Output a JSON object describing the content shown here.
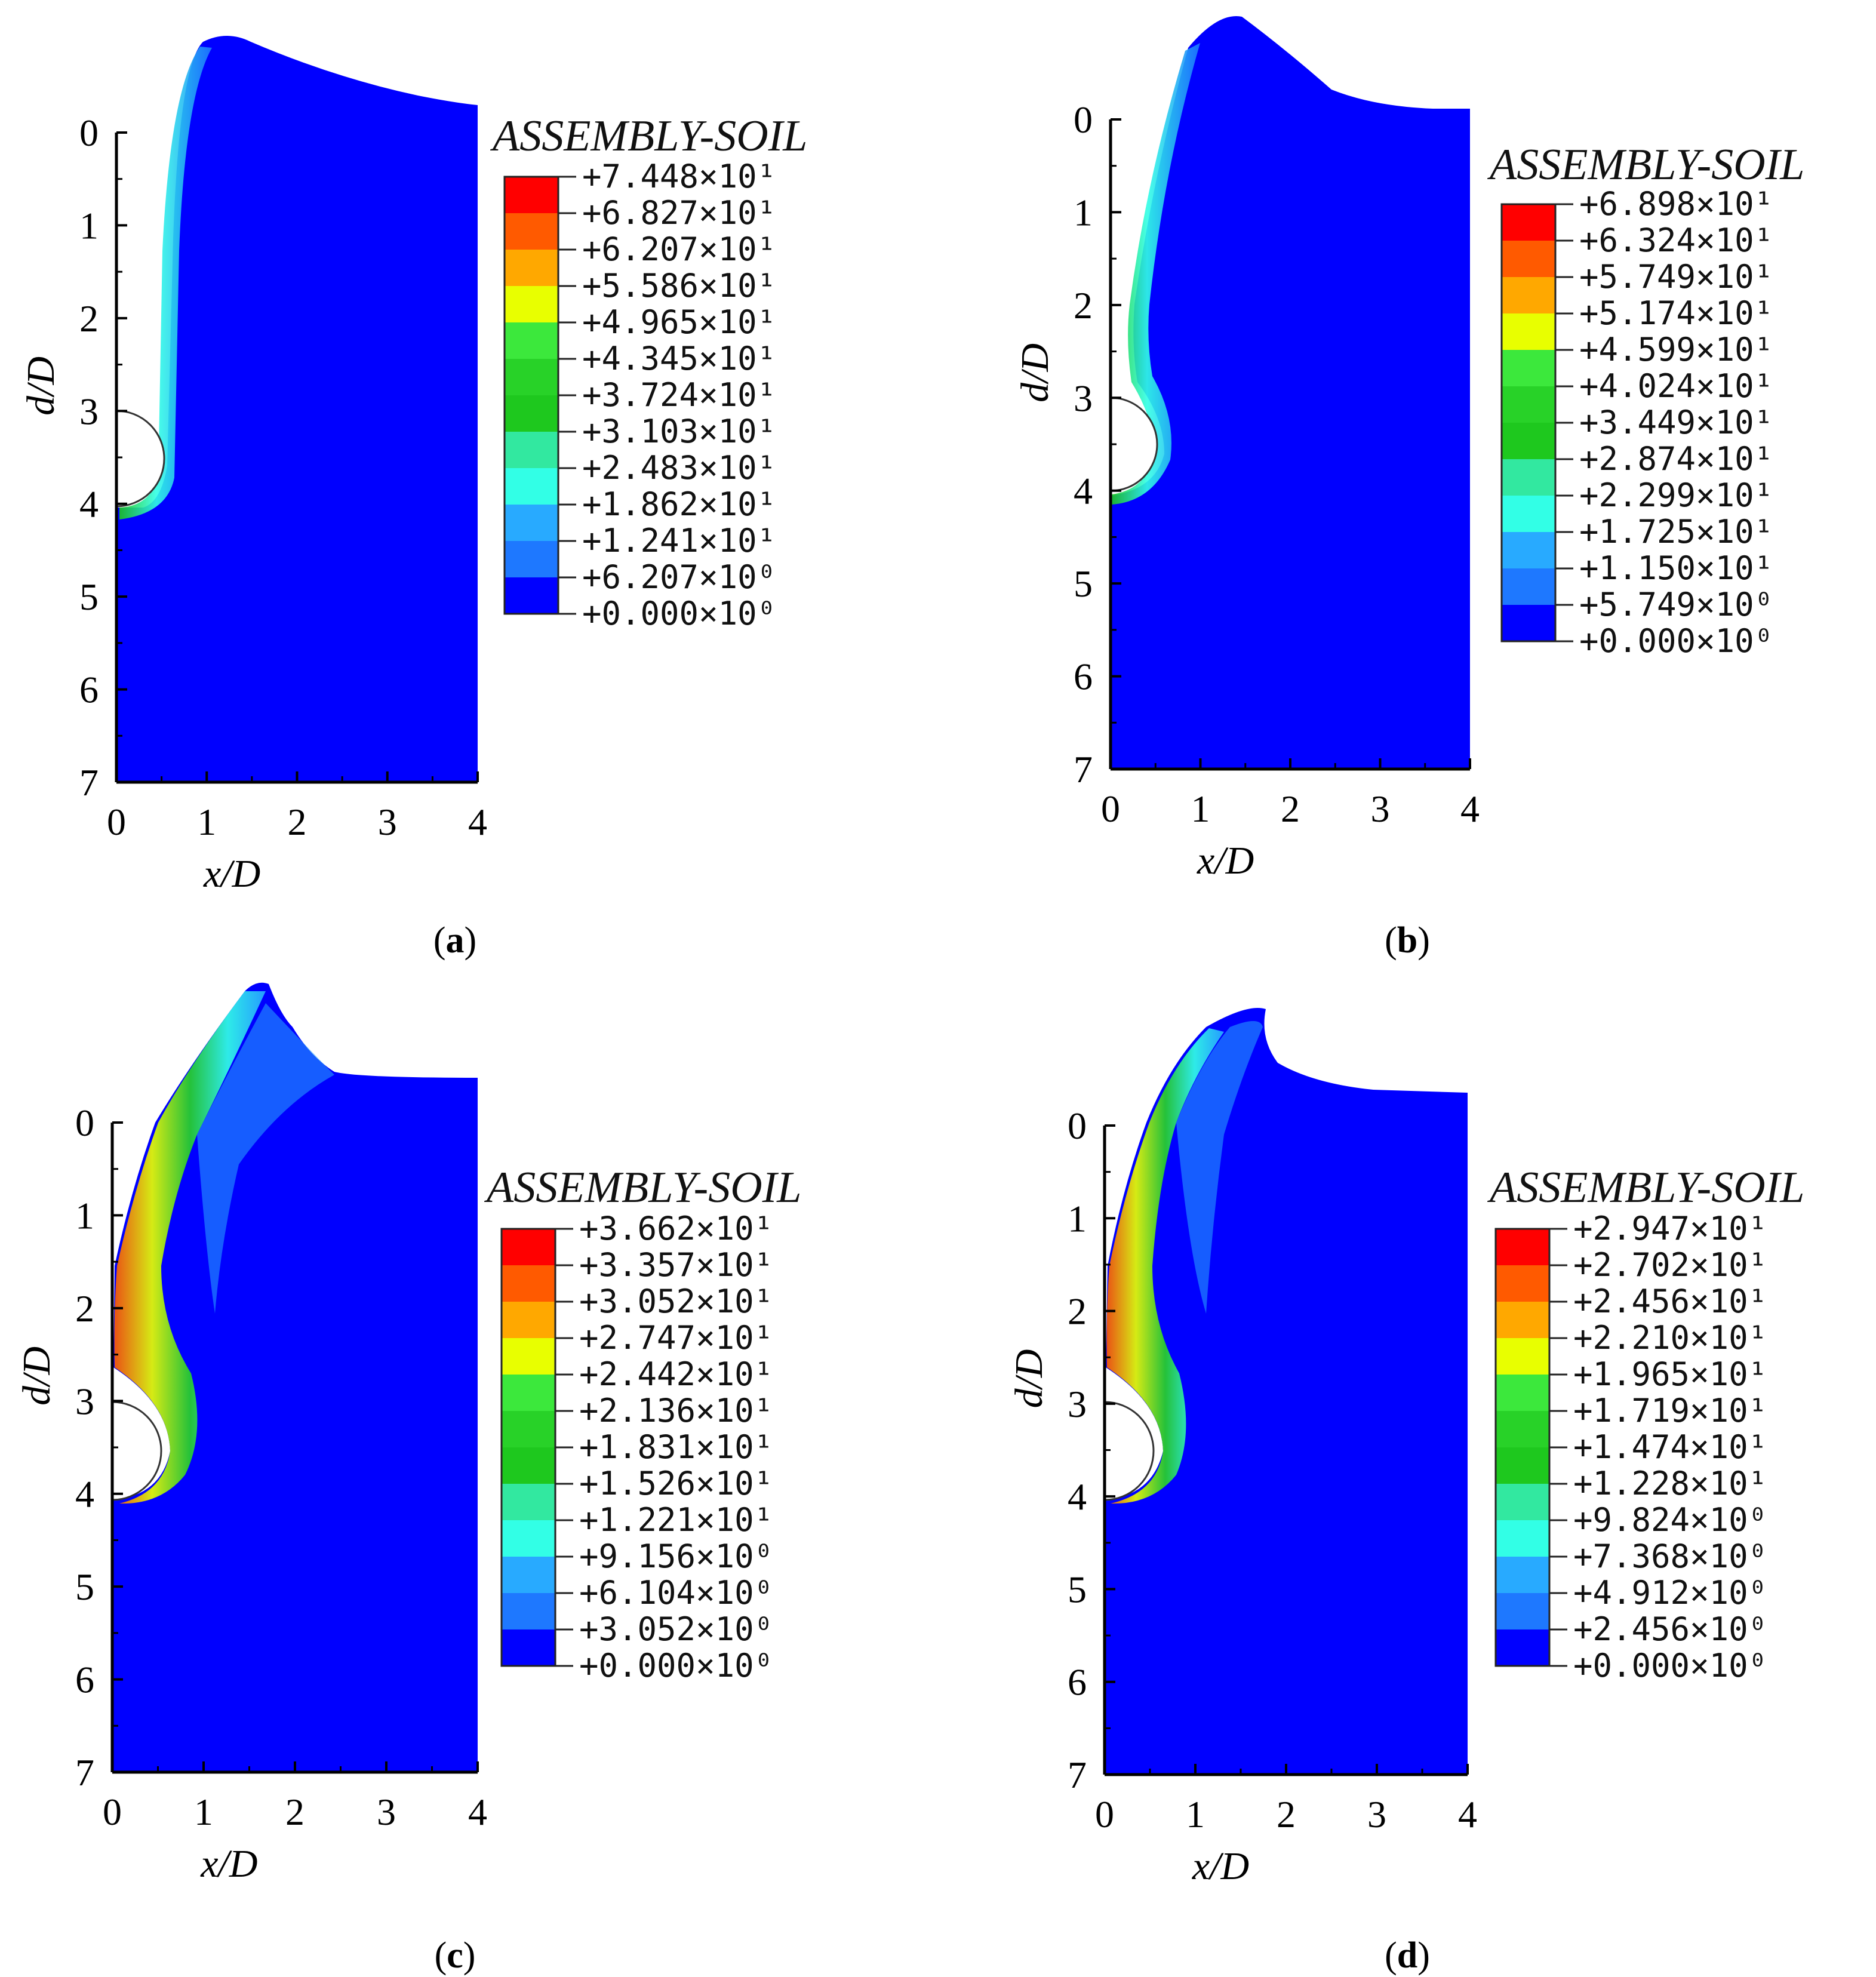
{
  "figure": {
    "panels": [
      {
        "id": "a",
        "legend_title": "ASSEMBLY-SOIL",
        "legend_values": [
          "+7.448×10¹",
          "+6.827×10¹",
          "+6.207×10¹",
          "+5.586×10¹",
          "+4.965×10¹",
          "+4.345×10¹",
          "+3.724×10¹",
          "+3.103×10¹",
          "+2.483×10¹",
          "+1.862×10¹",
          "+1.241×10¹",
          "+6.207×10⁰",
          "+0.000×10⁰"
        ]
      },
      {
        "id": "b",
        "legend_title": "ASSEMBLY-SOIL",
        "legend_values": [
          "+6.898×10¹",
          "+6.324×10¹",
          "+5.749×10¹",
          "+5.174×10¹",
          "+4.599×10¹",
          "+4.024×10¹",
          "+3.449×10¹",
          "+2.874×10¹",
          "+2.299×10¹",
          "+1.725×10¹",
          "+1.150×10¹",
          "+5.749×10⁰",
          "+0.000×10⁰"
        ]
      },
      {
        "id": "c",
        "legend_title": "ASSEMBLY-SOIL",
        "legend_values": [
          "+3.662×10¹",
          "+3.357×10¹",
          "+3.052×10¹",
          "+2.747×10¹",
          "+2.442×10¹",
          "+2.136×10¹",
          "+1.831×10¹",
          "+1.526×10¹",
          "+1.221×10¹",
          "+9.156×10⁰",
          "+6.104×10⁰",
          "+3.052×10⁰",
          "+0.000×10⁰"
        ]
      },
      {
        "id": "d",
        "legend_title": "ASSEMBLY-SOIL",
        "legend_values": [
          "+2.947×10¹",
          "+2.702×10¹",
          "+2.456×10¹",
          "+2.210×10¹",
          "+1.965×10¹",
          "+1.719×10¹",
          "+1.474×10¹",
          "+1.228×10¹",
          "+9.824×10⁰",
          "+7.368×10⁰",
          "+4.912×10⁰",
          "+2.456×10⁰",
          "+0.000×10⁰"
        ]
      }
    ],
    "legend_colors": [
      "#ff0000",
      "#ff5a00",
      "#ffa800",
      "#e8ff00",
      "#3ce83c",
      "#28d228",
      "#1ec81e",
      "#32e8a0",
      "#32ffe6",
      "#28aaff",
      "#1e78ff",
      "#0000ff"
    ]
  },
  "chart_data": [
    {
      "type": "heatmap",
      "panel": "(a)",
      "xlabel": "x/D",
      "ylabel": "d/D",
      "xlim": [
        0,
        4
      ],
      "ylim": [
        7,
        0
      ],
      "x_ticks": [
        "0",
        "1",
        "2",
        "3",
        "4"
      ],
      "y_ticks": [
        "0",
        "1",
        "2",
        "3",
        "4",
        "5",
        "6",
        "7"
      ],
      "colorbar_title": "ASSEMBLY-SOIL",
      "colorbar_max": 74.48,
      "colorbar_min": 0.0,
      "surface_profile": [
        [
          0.95,
          -0.3
        ],
        [
          1.1,
          -1.0
        ],
        [
          1.3,
          -1.05
        ],
        [
          2.0,
          -0.75
        ],
        [
          3.0,
          -0.45
        ],
        [
          4.0,
          -0.3
        ]
      ]
    },
    {
      "type": "heatmap",
      "panel": "(b)",
      "xlabel": "x/D",
      "ylabel": "d/D",
      "xlim": [
        0,
        4
      ],
      "ylim": [
        7,
        0
      ],
      "x_ticks": [
        "0",
        "1",
        "2",
        "3",
        "4"
      ],
      "y_ticks": [
        "0",
        "1",
        "2",
        "3",
        "4",
        "5",
        "6",
        "7"
      ],
      "colorbar_title": "ASSEMBLY-SOIL",
      "colorbar_max": 68.98,
      "colorbar_min": 0.0,
      "surface_profile": [
        [
          0.35,
          2.0
        ],
        [
          0.6,
          0.0
        ],
        [
          1.0,
          -0.9
        ],
        [
          1.35,
          -1.15
        ],
        [
          2.0,
          -0.5
        ],
        [
          3.0,
          -0.15
        ],
        [
          4.0,
          -0.1
        ]
      ]
    },
    {
      "type": "heatmap",
      "panel": "(c)",
      "xlabel": "x/D",
      "ylabel": "d/D",
      "xlim": [
        0,
        4
      ],
      "ylim": [
        7,
        0
      ],
      "x_ticks": [
        "0",
        "1",
        "2",
        "3",
        "4"
      ],
      "y_ticks": [
        "0",
        "1",
        "2",
        "3",
        "4",
        "5",
        "6",
        "7"
      ],
      "colorbar_title": "ASSEMBLY-SOIL",
      "colorbar_max": 36.62,
      "colorbar_min": 0.0,
      "surface_profile": [
        [
          0.15,
          1.5
        ],
        [
          0.5,
          0.0
        ],
        [
          1.0,
          -0.8
        ],
        [
          1.65,
          -1.5
        ],
        [
          2.1,
          -0.7
        ],
        [
          2.6,
          -0.5
        ],
        [
          4.0,
          -0.5
        ]
      ]
    },
    {
      "type": "heatmap",
      "panel": "(d)",
      "xlabel": "x/D",
      "ylabel": "d/D",
      "xlim": [
        0,
        4
      ],
      "ylim": [
        7,
        0
      ],
      "x_ticks": [
        "0",
        "1",
        "2",
        "3",
        "4"
      ],
      "y_ticks": [
        "0",
        "1",
        "2",
        "3",
        "4",
        "5",
        "6",
        "7"
      ],
      "colorbar_title": "ASSEMBLY-SOIL",
      "colorbar_max": 29.47,
      "colorbar_min": 0.0,
      "surface_profile": [
        [
          0.15,
          1.5
        ],
        [
          0.5,
          0.0
        ],
        [
          1.0,
          -0.6
        ],
        [
          1.6,
          -1.25
        ],
        [
          2.0,
          -0.55
        ],
        [
          2.6,
          -0.35
        ],
        [
          4.0,
          -0.3
        ]
      ]
    }
  ]
}
